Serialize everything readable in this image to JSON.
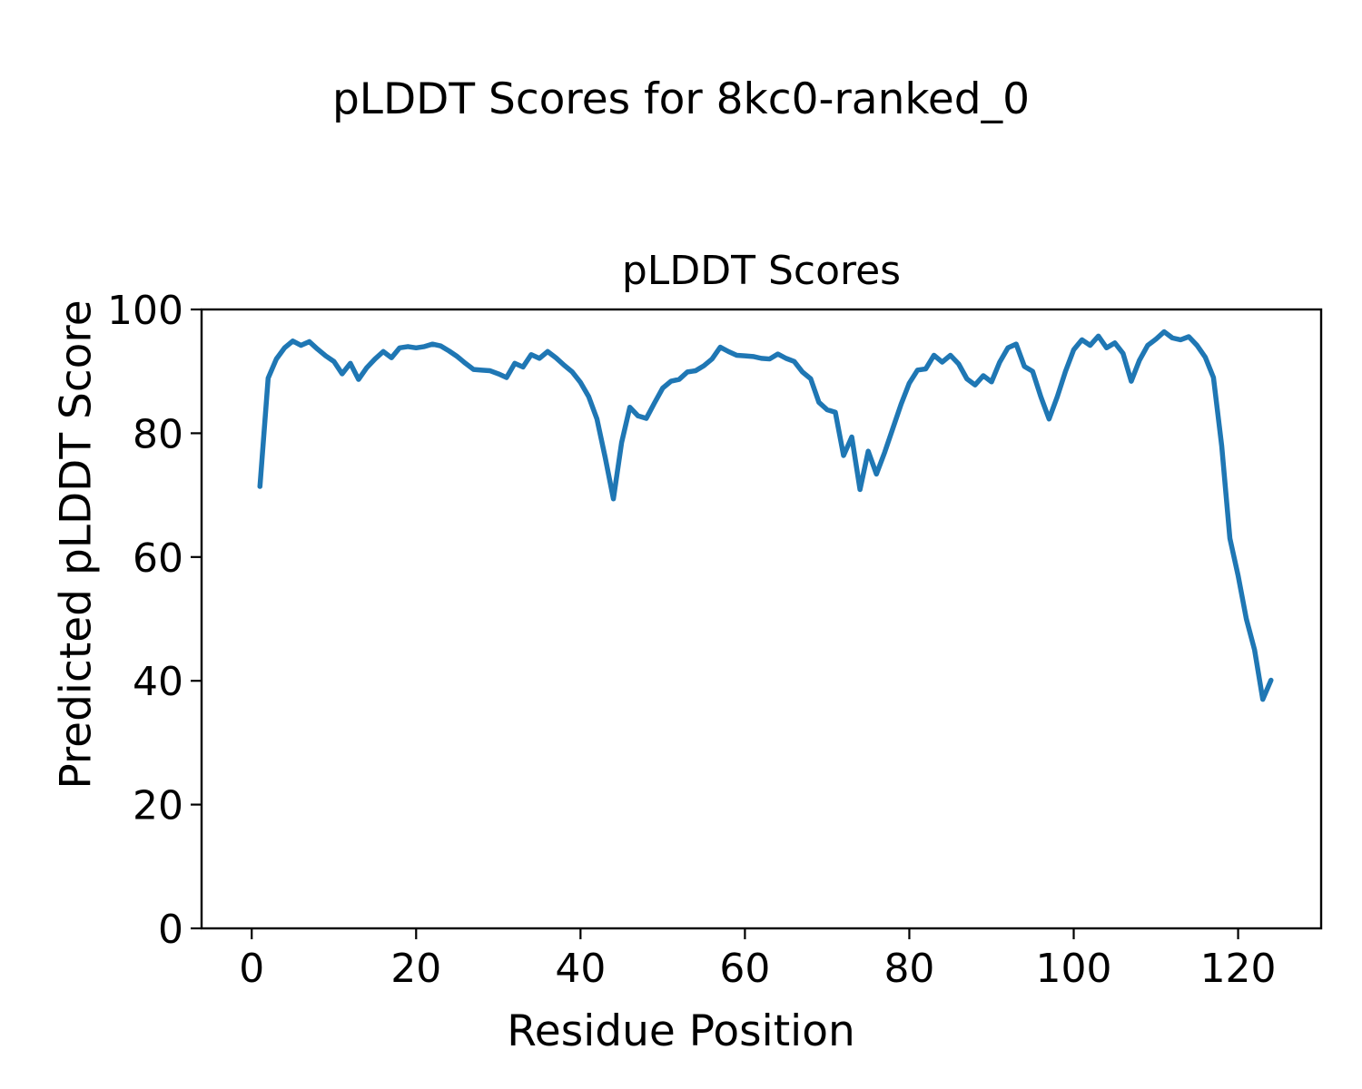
{
  "figure": {
    "suptitle": "pLDDT Scores for 8kc0-ranked_0",
    "background_color": "#ffffff"
  },
  "chart_data": {
    "type": "line",
    "title": "pLDDT Scores",
    "xlabel": "Residue Position",
    "ylabel": "Predicted pLDDT Score",
    "xlim": [
      -6.1,
      130.1
    ],
    "ylim": [
      0,
      100
    ],
    "x_ticks": [
      0,
      20,
      40,
      60,
      80,
      100,
      120
    ],
    "y_ticks": [
      0,
      20,
      40,
      60,
      80,
      100
    ],
    "grid": false,
    "legend": "none",
    "marker": "none",
    "line_color": "#1f77b4",
    "axis_color": "#000000",
    "text_color": "#000000",
    "series": [
      {
        "name": "pLDDT",
        "x_start": 1,
        "x_end": 124,
        "y": [
          71.4,
          88.9,
          92.0,
          93.8,
          94.9,
          94.2,
          94.8,
          93.6,
          92.5,
          91.6,
          89.6,
          91.3,
          88.7,
          90.6,
          92.0,
          93.2,
          92.2,
          93.8,
          94.0,
          93.8,
          94.0,
          94.4,
          94.1,
          93.3,
          92.4,
          91.3,
          90.3,
          90.2,
          90.1,
          89.6,
          89.0,
          91.3,
          90.7,
          92.7,
          92.1,
          93.2,
          92.2,
          91.0,
          89.9,
          88.2,
          85.9,
          82.3,
          76.1,
          69.4,
          78.5,
          84.2,
          82.8,
          82.4,
          84.9,
          87.3,
          88.4,
          88.7,
          89.9,
          90.1,
          90.9,
          92.0,
          93.9,
          93.2,
          92.6,
          92.5,
          92.4,
          92.1,
          92.0,
          92.8,
          92.1,
          91.6,
          89.9,
          88.8,
          85.0,
          83.8,
          83.4,
          76.4,
          79.4,
          70.9,
          77.1,
          73.4,
          76.9,
          80.8,
          84.7,
          88.1,
          90.2,
          90.4,
          92.6,
          91.5,
          92.6,
          91.2,
          88.8,
          87.8,
          89.3,
          88.3,
          91.5,
          93.8,
          94.4,
          90.8,
          90.0,
          85.9,
          82.3,
          85.9,
          90.0,
          93.5,
          95.1,
          94.2,
          95.7,
          93.8,
          94.6,
          92.9,
          88.4,
          91.8,
          94.2,
          95.2,
          96.4,
          95.4,
          95.1,
          95.6,
          94.2,
          92.3,
          89.0,
          78.0,
          63.0,
          57.0,
          50.0,
          45.0,
          37.0,
          40.1
        ]
      }
    ]
  }
}
